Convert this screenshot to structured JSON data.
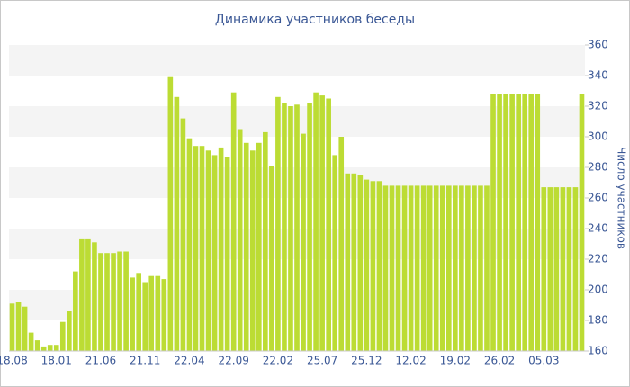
{
  "chart_data": {
    "type": "bar",
    "title": "Динамика участников беседы",
    "y_label": "Число участников",
    "color": "#bcdc34",
    "ylim": [
      160,
      360
    ],
    "yticks": [
      160,
      180,
      200,
      220,
      240,
      260,
      280,
      300,
      320,
      340,
      360
    ],
    "grid_bands": true,
    "categories": [
      "18.08",
      null,
      null,
      null,
      null,
      null,
      null,
      "18.01",
      null,
      null,
      null,
      null,
      null,
      null,
      "21.06",
      null,
      null,
      null,
      null,
      null,
      null,
      "21.11",
      null,
      null,
      null,
      null,
      null,
      null,
      "22.04",
      null,
      null,
      null,
      null,
      null,
      null,
      "22.09",
      null,
      null,
      null,
      null,
      null,
      null,
      "22.02",
      null,
      null,
      null,
      null,
      null,
      null,
      "25.07",
      null,
      null,
      null,
      null,
      null,
      null,
      "25.12",
      null,
      null,
      null,
      null,
      null,
      null,
      "12.02",
      null,
      null,
      null,
      null,
      null,
      null,
      "19.02",
      null,
      null,
      null,
      null,
      null,
      null,
      "26.02",
      null,
      null,
      null,
      null,
      null,
      null,
      "05.03",
      null,
      null,
      null,
      null,
      null,
      null
    ],
    "values": [
      191,
      192,
      189,
      172,
      167,
      163,
      164,
      164,
      179,
      186,
      212,
      233,
      233,
      231,
      224,
      224,
      224,
      225,
      225,
      208,
      211,
      205,
      209,
      209,
      207,
      339,
      326,
      312,
      299,
      294,
      294,
      291,
      288,
      293,
      287,
      329,
      305,
      296,
      291,
      296,
      303,
      281,
      326,
      322,
      320,
      321,
      302,
      322,
      329,
      327,
      325,
      288,
      300,
      276,
      276,
      275,
      272,
      271,
      271,
      268,
      268,
      268,
      268,
      268,
      268,
      268,
      268,
      268,
      268,
      268,
      268,
      268,
      268,
      268,
      268,
      268,
      328,
      328,
      328,
      328,
      328,
      328,
      328,
      328,
      267,
      267,
      267,
      267,
      267,
      267,
      328
    ]
  }
}
